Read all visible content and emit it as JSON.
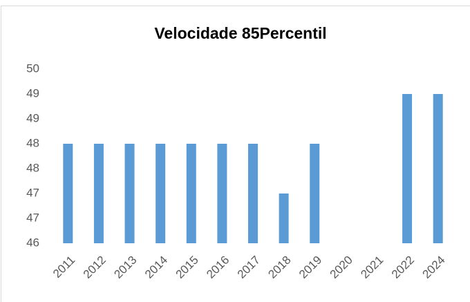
{
  "chart_data": {
    "type": "bar",
    "title": "Velocidade 85Percentil",
    "categories": [
      "2011",
      "2012",
      "2013",
      "2014",
      "2015",
      "2016",
      "2017",
      "2018",
      "2019",
      "2020",
      "2021",
      "2022",
      "2024"
    ],
    "values": [
      48,
      48,
      48,
      48,
      48,
      48,
      48,
      47,
      48,
      null,
      null,
      49,
      49
    ],
    "color": "#5b9bd5",
    "ylim": [
      46,
      49.5
    ],
    "yticks": [
      46,
      {
        "value": 46.5,
        "label": "47"
      },
      47,
      {
        "value": 47.5,
        "label": "48"
      },
      48,
      {
        "value": 48.5,
        "label": "49"
      },
      49,
      {
        "value": 49.5,
        "label": "50"
      }
    ],
    "grid": true
  }
}
